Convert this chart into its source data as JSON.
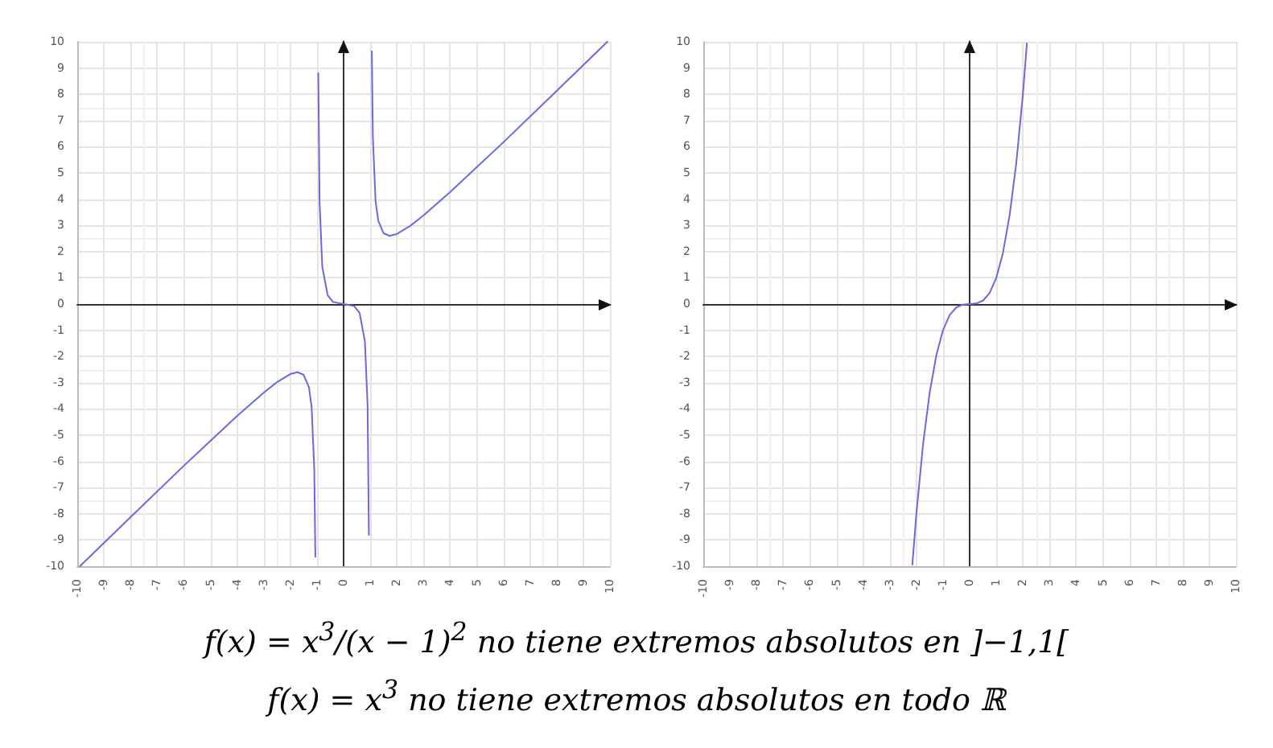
{
  "chart_data": [
    {
      "type": "line",
      "x": [
        -9.9,
        -8,
        -6,
        -4,
        -3,
        -2.5,
        -2,
        -1.73,
        -1.5,
        -1.3,
        -1.2,
        -1.1,
        -1.06,
        null,
        -0.95,
        -0.9,
        -0.8,
        -0.6,
        -0.4,
        0,
        0.4,
        0.6,
        0.8,
        0.9,
        0.95,
        null,
        1.06,
        1.1,
        1.2,
        1.3,
        1.5,
        1.73,
        2,
        2.5,
        3,
        4,
        6,
        8,
        9.9
      ],
      "series": [
        {
          "color": "#6a6ae0",
          "values": [
            -10.0,
            -8.13,
            -6.17,
            -4.27,
            -3.38,
            -2.98,
            -2.67,
            -2.6,
            -2.7,
            -3.18,
            -3.93,
            -6.34,
            -9.64,
            null,
            8.8,
            3.84,
            1.42,
            0.34,
            0.08,
            0,
            -0.08,
            -0.34,
            -1.42,
            -3.84,
            -8.8,
            null,
            9.64,
            6.34,
            3.93,
            3.18,
            2.7,
            2.6,
            2.67,
            2.98,
            3.38,
            4.27,
            6.17,
            8.13,
            10.0
          ]
        }
      ],
      "xlim": [
        -10,
        10
      ],
      "ylim": [
        -10,
        10
      ],
      "xticks": [
        -10,
        -9,
        -8,
        -7,
        -6,
        -5,
        -4,
        -3,
        -2,
        -1,
        0,
        1,
        2,
        3,
        4,
        5,
        6,
        7,
        8,
        9,
        10
      ],
      "yticks": [
        -10,
        -9,
        -8,
        -7,
        -6,
        -5,
        -4,
        -3,
        -2,
        -1,
        0,
        1,
        2,
        3,
        4,
        5,
        6,
        7,
        8,
        9,
        10
      ],
      "grid": true,
      "marker": "none",
      "line_style": "solid",
      "annotations": [
        "f(x) = x$^{3}$/(x − 1)$^{2}$  no tiene extremos absolutos en ]−1,1["
      ]
    },
    {
      "type": "line",
      "x": [
        -2.15,
        -2,
        -1.75,
        -1.5,
        -1.25,
        -1,
        -0.75,
        -0.5,
        -0.25,
        0,
        0.25,
        0.5,
        0.75,
        1,
        1.25,
        1.5,
        1.75,
        2,
        2.15
      ],
      "series": [
        {
          "color": "#6a6ae0",
          "values": [
            -9.94,
            -8,
            -5.36,
            -3.38,
            -1.95,
            -1,
            -0.42,
            -0.13,
            -0.02,
            0,
            0.02,
            0.13,
            0.42,
            1,
            1.95,
            3.38,
            5.36,
            8,
            9.94
          ]
        }
      ],
      "xlim": [
        -10,
        10
      ],
      "ylim": [
        -10,
        10
      ],
      "xticks": [
        -10,
        -9,
        -8,
        -7,
        -6,
        -5,
        -4,
        -3,
        -2,
        -1,
        0,
        1,
        2,
        3,
        4,
        5,
        6,
        7,
        8,
        9,
        10
      ],
      "yticks": [
        -10,
        -9,
        -8,
        -7,
        -6,
        -5,
        -4,
        -3,
        -2,
        -1,
        0,
        1,
        2,
        3,
        4,
        5,
        6,
        7,
        8,
        9,
        10
      ],
      "grid": true,
      "marker": "none",
      "line_style": "solid",
      "annotations": [
        "f(x) = x$^{3}$ no tiene extremos absolutos en todo ℝ"
      ]
    }
  ]
}
